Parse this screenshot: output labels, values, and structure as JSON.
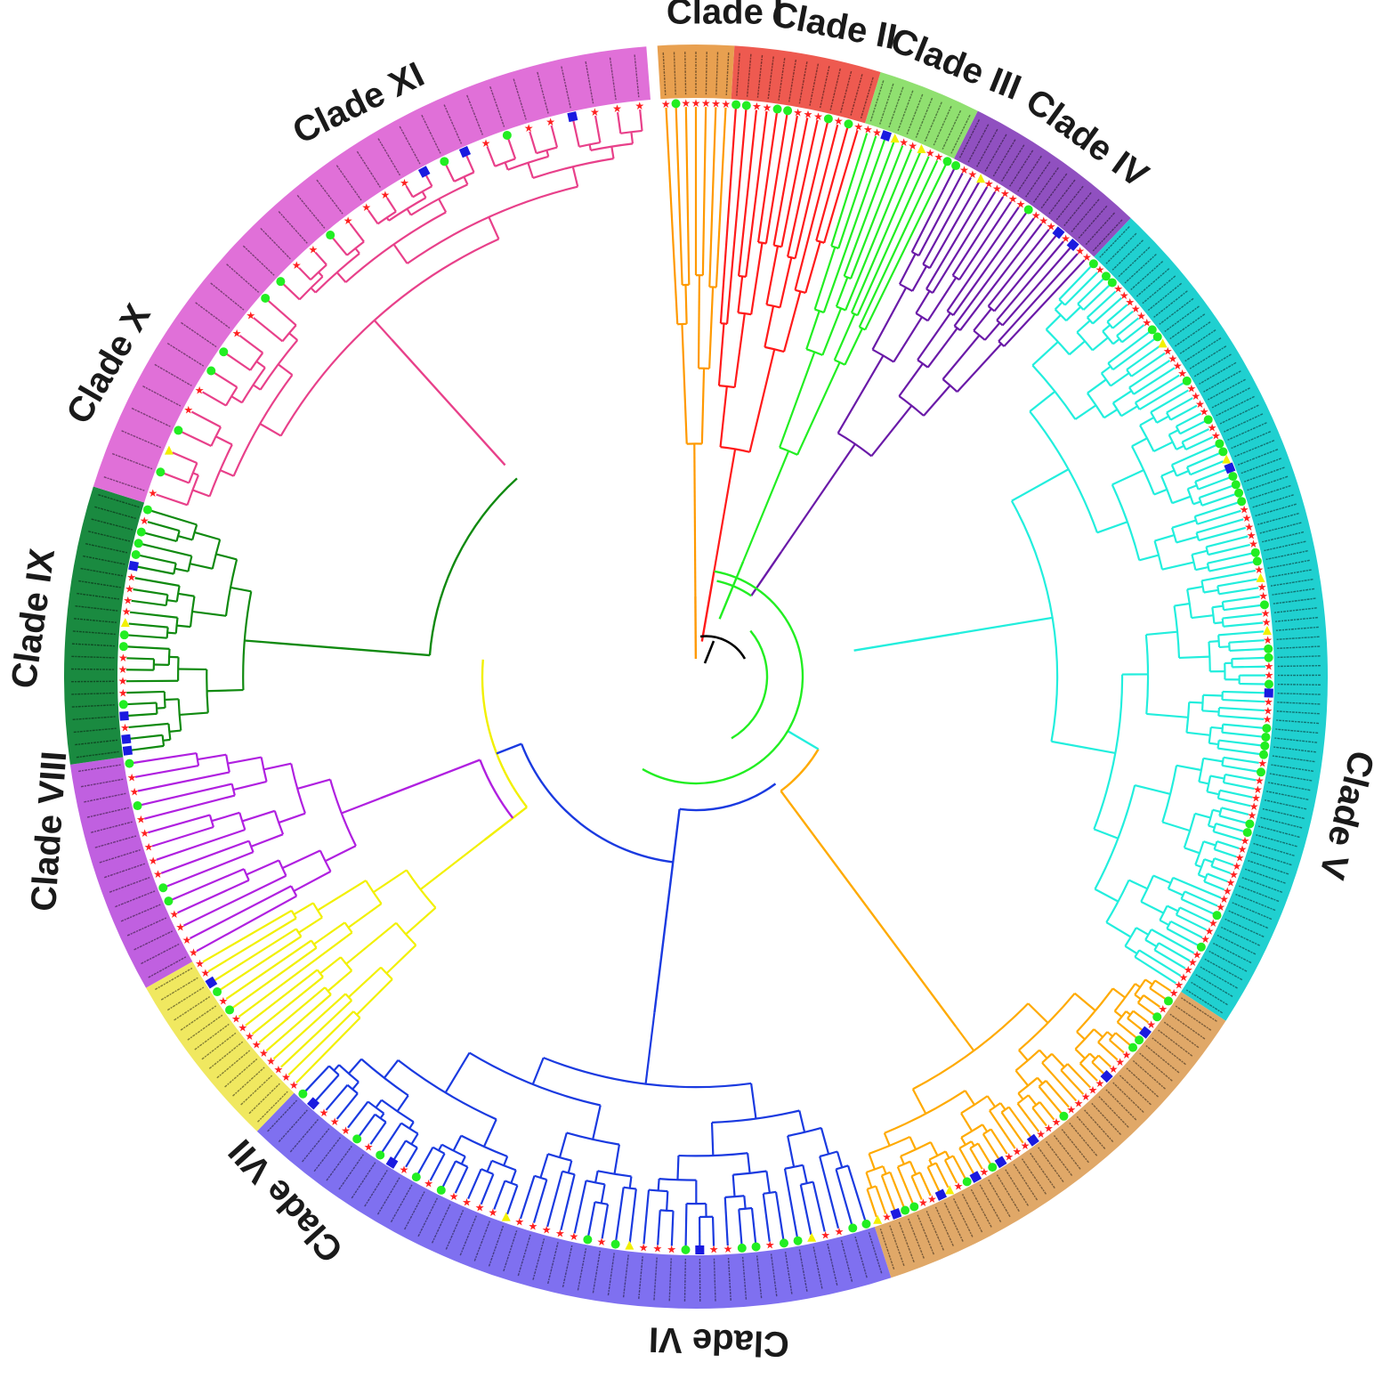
{
  "figure": {
    "title": "",
    "clades": [
      {
        "id": "I",
        "label": "Clade I",
        "band_color": "#e8a050",
        "branch_color": "#ff9900",
        "leaves": 7
      },
      {
        "id": "II",
        "label": "Clade II",
        "band_color": "#ee5a50",
        "branch_color": "#ff1a1a",
        "leaves": 13
      },
      {
        "id": "III",
        "label": "Clade III",
        "band_color": "#90e070",
        "branch_color": "#22ee22",
        "leaves": 10
      },
      {
        "id": "IV",
        "label": "Clade IV",
        "band_color": "#9050c0",
        "branch_color": "#6a1aa8",
        "leaves": 18
      },
      {
        "id": "V",
        "label": "Clade V",
        "band_color": "#20d0d0",
        "branch_color": "#22eedd",
        "leaves": 90
      },
      {
        "id": "VI",
        "label": "Clade VI",
        "band_color": "#e0a868",
        "branch_color": "#ffaa00",
        "leaves": 40
      },
      {
        "id": "VII",
        "label": "Clade VII",
        "band_color": "#7f70f0",
        "branch_color": "#1a3ae0",
        "leaves": 44
      },
      {
        "id": "VIII",
        "label": "Clade VIII",
        "band_color": "#f0e860",
        "branch_color": "#f2f000",
        "leaves": 15
      },
      {
        "id": "IX",
        "label": "Clade IX",
        "band_color": "#c060e0",
        "branch_color": "#b020e0",
        "leaves": 15
      },
      {
        "id": "X",
        "label": "Clade X",
        "band_color": "#1a8a40",
        "branch_color": "#108a10",
        "leaves": 22
      },
      {
        "id": "XI",
        "label": "Clade XI",
        "band_color": "#e070d8",
        "branch_color": "#e8408a",
        "leaves": 30
      }
    ],
    "root_color": "#000000",
    "marker_colors": {
      "star": "#ff2020",
      "circle": "#22ee22",
      "square": "#1a1ae0",
      "triangle": "#f2f000"
    }
  }
}
